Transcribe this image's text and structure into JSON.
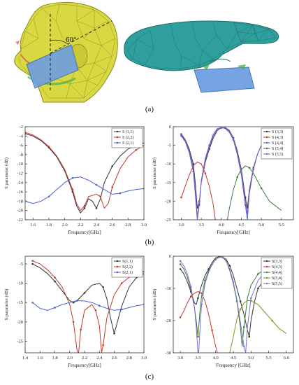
{
  "figure": {
    "captions": [
      "(a)",
      "(b)",
      "(c)"
    ],
    "annotation_angle": "60°"
  },
  "colors": {
    "head_fill": "#d8d840",
    "head_line": "#8a8a20",
    "hand_fill": "#2e9f9c",
    "hand_line": "#1d6e6b",
    "antenna": "#6f9fe0"
  },
  "chart_data": [
    {
      "type": "line",
      "xlabel": "Frequency[GHz]",
      "ylabel": "S parameter (dB)",
      "xlim": [
        1.5,
        3.0
      ],
      "ylim": [
        -22,
        -2
      ],
      "xticks": [
        1.6,
        1.8,
        2.0,
        2.2,
        2.4,
        2.6,
        2.8,
        3.0
      ],
      "yticks": [
        -2,
        -4,
        -6,
        -8,
        -10,
        -12,
        -14,
        -16,
        -18,
        -20,
        -22
      ],
      "legend_position": "top-right",
      "series": [
        {
          "name": "S (1,1)",
          "color": "#333333",
          "x": [
            1.5,
            1.6,
            1.7,
            1.8,
            1.9,
            2.0,
            2.1,
            2.15,
            2.2,
            2.25,
            2.3,
            2.35,
            2.4,
            2.45,
            2.5,
            2.6,
            2.7,
            2.8,
            2.9,
            3.0
          ],
          "y": [
            -3.5,
            -4.0,
            -5.0,
            -6.5,
            -8.5,
            -11.5,
            -16.0,
            -19.0,
            -20.5,
            -19.5,
            -17.5,
            -18.0,
            -19.5,
            -17.5,
            -14.0,
            -10.5,
            -8.3,
            -6.8,
            -6.0,
            -5.5
          ]
        },
        {
          "name": "S (2,2)",
          "color": "#c0392b",
          "x": [
            1.5,
            1.6,
            1.7,
            1.8,
            1.9,
            2.0,
            2.1,
            2.15,
            2.2,
            2.25,
            2.3,
            2.4,
            2.45,
            2.5,
            2.55,
            2.6,
            2.7,
            2.8,
            2.9,
            3.0
          ],
          "y": [
            -3.2,
            -3.8,
            -4.8,
            -6.3,
            -8.3,
            -11.2,
            -15.5,
            -18.5,
            -20.0,
            -19.0,
            -17.0,
            -16.5,
            -17.0,
            -19.5,
            -18.5,
            -15.0,
            -11.0,
            -8.5,
            -7.0,
            -6.0
          ]
        },
        {
          "name": "S (2,1)",
          "color": "#4a5fd0",
          "x": [
            1.5,
            1.6,
            1.7,
            1.8,
            1.9,
            2.0,
            2.1,
            2.2,
            2.3,
            2.4,
            2.5,
            2.6,
            2.7,
            2.8,
            2.9,
            3.0
          ],
          "y": [
            -18.0,
            -18.5,
            -18.0,
            -17.0,
            -15.5,
            -14.0,
            -13.0,
            -12.8,
            -13.5,
            -14.5,
            -15.5,
            -16.5,
            -16.3,
            -15.8,
            -15.5,
            -15.3
          ]
        }
      ]
    },
    {
      "type": "line",
      "xlabel": "Frequency[GHz]",
      "ylabel": "S parameter (dB)",
      "xlim": [
        2.8,
        5.8
      ],
      "ylim": [
        -25,
        0
      ],
      "xticks": [
        3.0,
        3.5,
        4.0,
        4.5,
        5.0,
        5.5
      ],
      "yticks": [
        0,
        -5,
        -10,
        -15,
        -20,
        -25
      ],
      "legend_position": "top-right",
      "series": [
        {
          "name": "S (3,3)",
          "color": "#333333",
          "x": [
            3.0,
            3.1,
            3.2,
            3.3,
            3.35,
            3.4,
            3.45,
            3.5,
            3.6,
            3.7,
            3.8,
            3.9,
            4.0,
            4.1,
            4.2,
            4.3,
            4.4,
            4.5,
            4.6,
            4.65,
            4.7,
            4.8,
            4.9,
            5.0,
            5.2,
            5.5
          ],
          "y": [
            -2.0,
            -3.5,
            -6.0,
            -10.0,
            -15.0,
            -22.0,
            -20.0,
            -15.0,
            -9.5,
            -6.0,
            -3.0,
            -1.0,
            -0.3,
            -0.2,
            -1.0,
            -3.0,
            -6.5,
            -11.5,
            -19.0,
            -22.0,
            -17.0,
            -11.0,
            -7.5,
            -5.0,
            -3.0,
            -2.0
          ]
        },
        {
          "name": "S (4,3)",
          "color": "#c0392b",
          "x": [
            3.0,
            3.1,
            3.2,
            3.3,
            3.4,
            3.5,
            3.6,
            3.7,
            3.8,
            3.85
          ],
          "y": [
            -19.0,
            -16.0,
            -13.0,
            -10.5,
            -9.5,
            -10.0,
            -12.5,
            -16.0,
            -21.0,
            -25.0
          ]
        },
        {
          "name": "S (4,4)",
          "color": "#4a5fd0",
          "x": [
            3.0,
            3.1,
            3.2,
            3.3,
            3.35,
            3.4,
            3.45,
            3.5,
            3.6,
            3.7,
            3.8,
            3.9,
            4.0,
            4.1,
            4.2,
            4.3,
            4.4,
            4.5,
            4.6,
            4.65,
            4.7,
            4.8,
            4.9,
            5.0,
            5.2,
            5.5
          ],
          "y": [
            -2.5,
            -4.0,
            -7.0,
            -12.0,
            -18.0,
            -25.0,
            -21.0,
            -14.5,
            -8.5,
            -5.0,
            -2.0,
            -0.5,
            -0.2,
            -0.5,
            -1.5,
            -3.5,
            -7.5,
            -13.0,
            -21.0,
            -25.0,
            -18.0,
            -11.5,
            -7.5,
            -5.0,
            -3.2,
            -2.2
          ]
        },
        {
          "name": "S (5,4)",
          "color": "#3d7a3d",
          "x": [
            4.15,
            4.2,
            4.3,
            4.4,
            4.5,
            4.6,
            4.7,
            4.8,
            4.9,
            5.0,
            5.2,
            5.5
          ],
          "y": [
            -25.0,
            -22.0,
            -17.0,
            -13.5,
            -11.5,
            -10.5,
            -11.0,
            -12.5,
            -14.5,
            -16.5,
            -20.0,
            -22.5
          ]
        },
        {
          "name": "S (5,5)",
          "color": "#7f5fc0",
          "x": [
            3.0,
            3.1,
            3.2,
            3.3,
            3.35,
            3.4,
            3.45,
            3.5,
            3.6,
            3.7,
            3.8,
            3.9,
            4.0,
            4.1,
            4.2,
            4.3,
            4.4,
            4.5,
            4.6,
            4.65,
            4.7,
            4.8,
            4.9,
            5.0,
            5.2,
            5.5
          ],
          "y": [
            -2.2,
            -3.8,
            -6.5,
            -11.0,
            -16.5,
            -24.0,
            -20.5,
            -14.8,
            -9.0,
            -5.5,
            -2.5,
            -0.8,
            -0.3,
            -0.3,
            -1.2,
            -3.2,
            -7.0,
            -12.0,
            -20.0,
            -23.5,
            -17.5,
            -11.2,
            -7.5,
            -5.0,
            -3.1,
            -2.1
          ]
        }
      ]
    },
    {
      "type": "line",
      "xlabel": "Frequency[GHz]",
      "ylabel": "S parameter (dB)",
      "xlim": [
        1.4,
        3.0
      ],
      "ylim": [
        -28,
        -3
      ],
      "xticks": [
        1.4,
        1.6,
        1.8,
        2.0,
        2.2,
        2.4,
        2.6,
        2.8,
        3.0
      ],
      "yticks": [
        -5,
        -10,
        -15,
        -20,
        -25
      ],
      "legend_position": "top-right",
      "series": [
        {
          "name": "S(1,1)",
          "color": "#333333",
          "x": [
            1.5,
            1.6,
            1.7,
            1.8,
            1.9,
            2.0,
            2.05,
            2.1,
            2.15,
            2.2,
            2.3,
            2.4,
            2.45,
            2.5,
            2.55,
            2.6,
            2.7,
            2.8,
            2.9,
            3.0
          ],
          "y": [
            -5.0,
            -6.0,
            -7.5,
            -9.5,
            -12.0,
            -14.5,
            -15.0,
            -14.5,
            -13.5,
            -12.5,
            -10.5,
            -10.0,
            -11.0,
            -14.0,
            -19.0,
            -23.0,
            -16.0,
            -11.0,
            -8.5,
            -7.5
          ]
        },
        {
          "name": "S(2,2)",
          "color": "#c0392b",
          "x": [
            1.5,
            1.6,
            1.7,
            1.8,
            1.9,
            2.0,
            2.05,
            2.1,
            2.12,
            2.15,
            2.2,
            2.3,
            2.35,
            2.4,
            2.43,
            2.45,
            2.5,
            2.6,
            2.7,
            2.8,
            2.9,
            3.0
          ],
          "y": [
            -4.2,
            -5.0,
            -6.5,
            -8.5,
            -11.0,
            -15.5,
            -20.0,
            -27.5,
            -28.0,
            -22.0,
            -17.0,
            -15.5,
            -17.0,
            -21.0,
            -28.0,
            -26.0,
            -19.0,
            -13.0,
            -10.0,
            -8.5,
            -7.5,
            -7.0
          ]
        },
        {
          "name": "S(2,1)",
          "color": "#4a5fd0",
          "x": [
            1.5,
            1.6,
            1.7,
            1.8,
            1.9,
            2.0,
            2.1,
            2.2,
            2.3,
            2.4,
            2.5,
            2.6,
            2.7,
            2.8,
            2.9,
            3.0
          ],
          "y": [
            -15.0,
            -16.5,
            -17.0,
            -16.3,
            -15.5,
            -15.0,
            -14.5,
            -14.6,
            -15.0,
            -15.8,
            -16.5,
            -17.0,
            -16.8,
            -16.3,
            -15.8,
            -15.5
          ]
        }
      ]
    },
    {
      "type": "line",
      "xlabel": "Frequency [GHz]",
      "ylabel": "S parameter (dB)",
      "xlim": [
        2.8,
        6.2
      ],
      "ylim": [
        -30,
        0
      ],
      "xticks": [
        3.0,
        3.5,
        4.0,
        4.5,
        5.0,
        5.5,
        6.0
      ],
      "yticks": [
        0,
        -10,
        -20,
        -30
      ],
      "legend_position": "top-right",
      "series": [
        {
          "name": "S(3,3)",
          "color": "#333333",
          "x": [
            3.0,
            3.1,
            3.2,
            3.3,
            3.4,
            3.45,
            3.5,
            3.6,
            3.7,
            3.8,
            3.9,
            4.0,
            4.1,
            4.2,
            4.3,
            4.4,
            4.5,
            4.6,
            4.7,
            4.8,
            4.9,
            4.95,
            5.0,
            5.1,
            5.2,
            5.4,
            5.6,
            5.8,
            6.0
          ],
          "y": [
            -4.0,
            -5.5,
            -8.0,
            -11.0,
            -14.5,
            -15.0,
            -13.0,
            -9.0,
            -6.0,
            -4.0,
            -2.0,
            -0.5,
            -0.2,
            -0.3,
            -1.0,
            -3.0,
            -6.0,
            -10.0,
            -14.0,
            -18.0,
            -23.0,
            -25.0,
            -20.0,
            -14.0,
            -10.0,
            -7.0,
            -5.5,
            -4.5,
            -4.0
          ]
        },
        {
          "name": "S(4,3)",
          "color": "#c0392b",
          "x": [
            3.0,
            3.1,
            3.2,
            3.3,
            3.4,
            3.5,
            3.6,
            3.7,
            3.8,
            3.9,
            4.0,
            4.05
          ],
          "y": [
            -19.0,
            -17.0,
            -14.5,
            -12.5,
            -11.5,
            -11.0,
            -11.5,
            -14.0,
            -18.0,
            -23.0,
            -28.0,
            -30.0
          ]
        },
        {
          "name": "S(4,4)",
          "color": "#3d7a3d",
          "x": [
            3.0,
            3.1,
            3.2,
            3.3,
            3.4,
            3.45,
            3.5,
            3.55,
            3.6,
            3.7,
            3.8,
            3.9,
            4.0,
            4.1,
            4.2,
            4.3,
            4.4,
            4.5,
            4.6,
            4.7,
            4.75,
            4.8,
            4.9,
            5.0,
            5.2,
            5.4,
            5.6,
            5.8,
            6.0
          ],
          "y": [
            -2.5,
            -4.0,
            -6.5,
            -10.5,
            -16.0,
            -20.0,
            -25.0,
            -18.0,
            -12.5,
            -7.5,
            -4.5,
            -2.5,
            -1.0,
            -0.3,
            -0.3,
            -1.5,
            -4.5,
            -8.5,
            -14.0,
            -22.0,
            -28.0,
            -22.0,
            -13.0,
            -9.0,
            -5.5,
            -4.0,
            -3.2,
            -2.8,
            -2.5
          ]
        },
        {
          "name": "S(5,4)",
          "color": "#8a8a2a",
          "x": [
            4.4,
            4.5,
            4.6,
            4.7,
            4.8,
            4.9,
            5.0,
            5.2,
            5.4,
            5.6,
            5.8,
            6.0
          ],
          "y": [
            -30.0,
            -25.0,
            -19.5,
            -16.5,
            -14.5,
            -13.8,
            -13.8,
            -15.0,
            -17.5,
            -20.0,
            -22.5,
            -24.0
          ]
        },
        {
          "name": "S(5,5)",
          "color": "#7f6fd0",
          "x": [
            3.0,
            3.1,
            3.2,
            3.3,
            3.4,
            3.45,
            3.5,
            3.52,
            3.55,
            3.6,
            3.7,
            3.8,
            3.9,
            4.0,
            4.1,
            4.2,
            4.3,
            4.4,
            4.5,
            4.6,
            4.7,
            4.8,
            4.85,
            4.9,
            5.0,
            5.2,
            5.4,
            5.6,
            5.8,
            6.0
          ],
          "y": [
            -1.5,
            -3.0,
            -5.5,
            -9.5,
            -16.0,
            -22.0,
            -30.0,
            -30.0,
            -24.0,
            -15.0,
            -8.5,
            -5.0,
            -2.5,
            -1.0,
            -0.3,
            -0.4,
            -1.5,
            -4.0,
            -8.0,
            -13.5,
            -20.5,
            -28.0,
            -30.0,
            -22.0,
            -13.0,
            -7.5,
            -5.0,
            -3.8,
            -3.0,
            -2.5
          ]
        }
      ]
    }
  ]
}
